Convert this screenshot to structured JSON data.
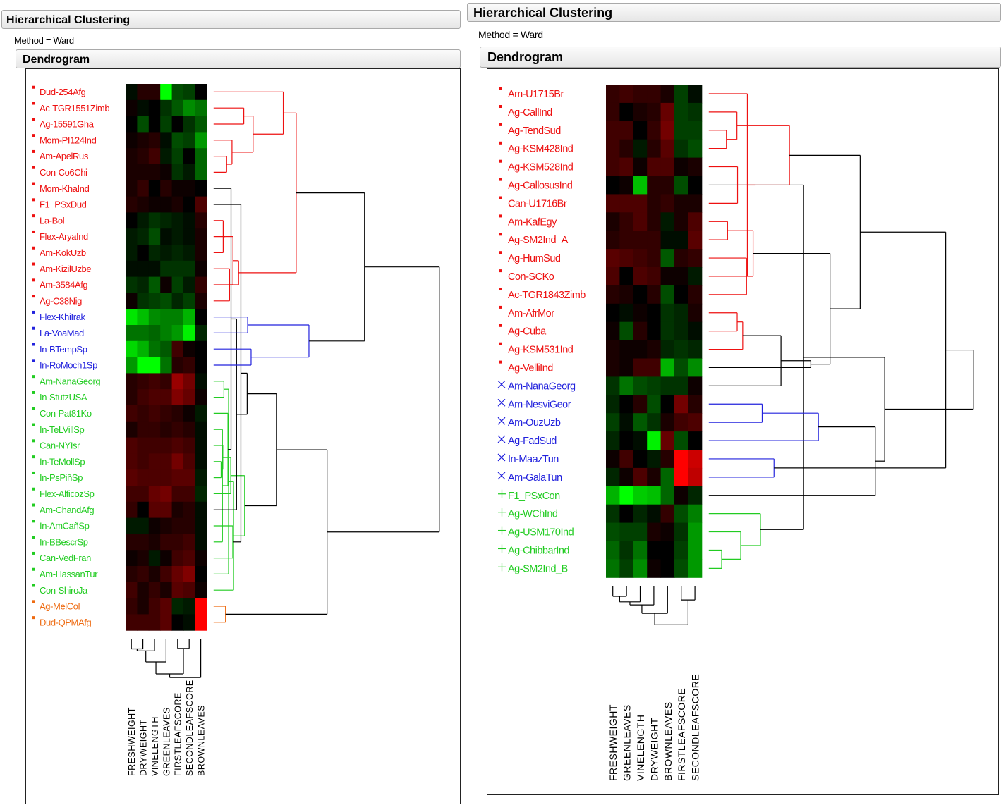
{
  "panels": [
    {
      "title": "Hierarchical Clustering",
      "method_label": "Method = Ward",
      "subtitle": "Dendrogram"
    },
    {
      "title": "Hierarchical Clustering",
      "method_label": "Method = Ward",
      "subtitle": "Dendrogram"
    }
  ],
  "chart_data": [
    {
      "type": "heatmap",
      "title": "Dendrogram",
      "method": "Ward",
      "colors": {
        "high": "#ff0000",
        "low": "#00ff00",
        "mid": "#000000"
      },
      "columns": [
        "FRESHWEIGHT",
        "DRYWEIGHT",
        "VINELENGTH",
        "GREENLEAVES",
        "FIRSTLEAFSCORE",
        "SECONDLEAFSCORE",
        "BROWNLEAVES"
      ],
      "clusters": [
        {
          "color": "#ee1111",
          "marker": "square"
        },
        {
          "color": "#2222dd",
          "marker": "square"
        },
        {
          "color": "#22cc22",
          "marker": "square"
        },
        {
          "color": "#ee6a10",
          "marker": "square"
        }
      ],
      "rows": [
        {
          "label": "Dud-254Afg",
          "cluster": 0,
          "values": [
            -0.1,
            0.3,
            0.3,
            -2.0,
            -0.6,
            -0.5,
            0.0
          ]
        },
        {
          "label": "Ac-TGR1551Zimb",
          "cluster": 0,
          "values": [
            0.1,
            -0.1,
            0.0,
            -0.4,
            -0.7,
            -1.1,
            -0.9
          ]
        },
        {
          "label": "Ag-15591Gha",
          "cluster": 0,
          "values": [
            0.0,
            -0.6,
            0.0,
            -0.5,
            0.0,
            -0.4,
            -0.7
          ]
        },
        {
          "label": "Mom-PI124Ind",
          "cluster": 0,
          "values": [
            0.1,
            0.2,
            0.3,
            -0.1,
            -0.6,
            -0.5,
            -1.2
          ]
        },
        {
          "label": "Am-ApelRus",
          "cluster": 0,
          "values": [
            0.2,
            0.3,
            0.5,
            -0.2,
            -0.5,
            0.0,
            -0.8
          ]
        },
        {
          "label": "Con-Co6Chi",
          "cluster": 0,
          "values": [
            0.2,
            0.2,
            0.2,
            0.1,
            -0.4,
            -0.2,
            -0.8
          ]
        },
        {
          "label": "Mom-KhaInd",
          "cluster": 0,
          "values": [
            0.2,
            0.4,
            0.0,
            0.3,
            0.1,
            0.1,
            0.0
          ]
        },
        {
          "label": "F1_PSxDud",
          "cluster": 0,
          "values": [
            0.3,
            0.2,
            0.1,
            0.1,
            0.2,
            0.0,
            0.6
          ]
        },
        {
          "label": "La-Bol",
          "cluster": 0,
          "values": [
            0.0,
            -0.2,
            -0.4,
            -0.3,
            -0.2,
            -0.1,
            0.3
          ]
        },
        {
          "label": "Flex-AryaInd",
          "cluster": 0,
          "values": [
            -0.2,
            -0.3,
            -0.6,
            -0.1,
            -0.2,
            -0.1,
            0.2
          ]
        },
        {
          "label": "Am-KokUzb",
          "cluster": 0,
          "values": [
            -0.2,
            0.0,
            -0.3,
            -0.2,
            -0.3,
            -0.2,
            0.2
          ]
        },
        {
          "label": "Am-KizilUzbe",
          "cluster": 0,
          "values": [
            -0.1,
            -0.1,
            -0.1,
            -0.4,
            -0.4,
            -0.4,
            0.1
          ]
        },
        {
          "label": "Am-3584Afg",
          "cluster": 0,
          "values": [
            -0.4,
            -0.3,
            -0.7,
            0.1,
            -0.5,
            -0.2,
            0.4
          ]
        },
        {
          "label": "Ag-C38Nig",
          "cluster": 0,
          "values": [
            0.1,
            -0.4,
            -0.5,
            -0.6,
            -0.3,
            -0.5,
            0.2
          ]
        },
        {
          "label": "Flex-KhiIrak",
          "cluster": 1,
          "values": [
            -1.8,
            -1.5,
            -1.1,
            -1.0,
            -1.0,
            -1.4,
            0.0
          ]
        },
        {
          "label": "La-VoaMad",
          "cluster": 1,
          "values": [
            -0.9,
            -0.9,
            -0.8,
            -1.0,
            -1.2,
            -1.9,
            -0.3
          ]
        },
        {
          "label": "In-BTempSp",
          "cluster": 1,
          "values": [
            -1.7,
            -1.4,
            -0.9,
            -0.7,
            0.5,
            0.1,
            0.0
          ]
        },
        {
          "label": "In-RoMoch1Sp",
          "cluster": 1,
          "values": [
            -1.2,
            -2.0,
            -2.0,
            -0.9,
            0.3,
            0.4,
            0.0
          ]
        },
        {
          "label": "Am-NanaGeorg",
          "cluster": 2,
          "values": [
            0.3,
            0.4,
            0.5,
            0.4,
            1.2,
            0.9,
            -0.1
          ]
        },
        {
          "label": "In-StutzUSA",
          "cluster": 2,
          "values": [
            0.3,
            0.5,
            0.6,
            0.6,
            1.0,
            0.8,
            0.1
          ]
        },
        {
          "label": "Con-Pat81Ko",
          "cluster": 2,
          "values": [
            0.5,
            0.4,
            0.5,
            0.4,
            0.3,
            0.1,
            -0.2
          ]
        },
        {
          "label": "In-TeLVillSp",
          "cluster": 2,
          "values": [
            0.2,
            0.4,
            0.4,
            0.3,
            0.4,
            0.3,
            -0.1
          ]
        },
        {
          "label": "Can-NYIsr",
          "cluster": 2,
          "values": [
            0.6,
            0.5,
            0.5,
            0.5,
            0.6,
            0.5,
            -0.1
          ]
        },
        {
          "label": "In-TeMollSp",
          "cluster": 2,
          "values": [
            0.6,
            0.5,
            0.6,
            0.6,
            0.9,
            0.6,
            -0.1
          ]
        },
        {
          "label": "In-PsPiñSp",
          "cluster": 2,
          "values": [
            0.7,
            0.6,
            0.6,
            0.6,
            0.7,
            0.7,
            -0.2
          ]
        },
        {
          "label": "Flex-AlficozSp",
          "cluster": 2,
          "values": [
            0.5,
            0.5,
            0.8,
            0.9,
            0.5,
            0.5,
            -0.3
          ]
        },
        {
          "label": "Am-ChandAfg",
          "cluster": 2,
          "values": [
            0.4,
            0.0,
            0.7,
            0.7,
            0.2,
            0.3,
            -0.1
          ]
        },
        {
          "label": "In-AmCañSp",
          "cluster": 2,
          "values": [
            -0.2,
            -0.2,
            0.1,
            0.2,
            0.3,
            0.3,
            -0.1
          ]
        },
        {
          "label": "In-BBescrSp",
          "cluster": 2,
          "values": [
            0.3,
            0.3,
            0.2,
            0.4,
            0.4,
            0.5,
            -0.1
          ]
        },
        {
          "label": "Can-VedFran",
          "cluster": 2,
          "values": [
            0.1,
            0.2,
            -0.2,
            0.1,
            0.5,
            0.6,
            0.1
          ]
        },
        {
          "label": "Am-HassanTur",
          "cluster": 2,
          "values": [
            0.3,
            0.4,
            0.2,
            0.5,
            0.8,
            1.0,
            0.0
          ]
        },
        {
          "label": "Con-ShiroJa",
          "cluster": 2,
          "values": [
            0.5,
            0.2,
            0.4,
            0.2,
            0.7,
            0.6,
            0.1
          ]
        },
        {
          "label": "Ag-MelCol",
          "cluster": 3,
          "values": [
            0.4,
            0.2,
            0.5,
            0.7,
            -0.3,
            -0.2,
            2.0
          ]
        },
        {
          "label": "Dud-QPMAfg",
          "cluster": 3,
          "values": [
            0.5,
            0.5,
            0.5,
            0.7,
            0.0,
            -0.1,
            2.0
          ]
        }
      ]
    },
    {
      "type": "heatmap",
      "title": "Dendrogram",
      "method": "Ward",
      "colors": {
        "high": "#ff0000",
        "low": "#00ff00",
        "mid": "#000000"
      },
      "columns": [
        "FRESHWEIGHT",
        "GREENLEAVES",
        "VINELENGTH",
        "DRYWEIGHT",
        "BROWNLEAVES",
        "FIRSTLEAFSCORE",
        "SECONDLEAFSCORE"
      ],
      "clusters": [
        {
          "color": "#ee1111",
          "marker": "square"
        },
        {
          "color": "#2222dd",
          "marker": "cross"
        },
        {
          "color": "#22cc22",
          "marker": "plus"
        }
      ],
      "rows": [
        {
          "label": "Am-U1715Br",
          "cluster": 0,
          "values": [
            0.4,
            0.5,
            0.4,
            0.4,
            0.2,
            -0.5,
            -0.1
          ]
        },
        {
          "label": "Ag-CallInd",
          "cluster": 0,
          "values": [
            0.4,
            0.0,
            0.2,
            0.3,
            0.8,
            -0.5,
            -0.4
          ]
        },
        {
          "label": "Ag-TendSud",
          "cluster": 0,
          "values": [
            0.5,
            0.5,
            0.0,
            0.4,
            0.9,
            -0.5,
            -0.5
          ]
        },
        {
          "label": "Ag-KSM428Ind",
          "cluster": 0,
          "values": [
            0.5,
            0.3,
            -0.2,
            0.3,
            0.7,
            -0.4,
            -0.6
          ]
        },
        {
          "label": "Ag-KSM528Ind",
          "cluster": 0,
          "values": [
            0.5,
            0.6,
            0.1,
            0.6,
            0.6,
            0.1,
            0.2
          ]
        },
        {
          "label": "Ag-CallosusInd",
          "cluster": 0,
          "values": [
            0.0,
            0.1,
            -1.5,
            0.3,
            0.3,
            -0.6,
            0.0
          ]
        },
        {
          "label": "Can-U1716Br",
          "cluster": 0,
          "values": [
            0.6,
            0.6,
            0.6,
            0.3,
            0.4,
            0.2,
            0.2
          ]
        },
        {
          "label": "Am-KafEgy",
          "cluster": 0,
          "values": [
            0.2,
            0.4,
            0.6,
            0.3,
            -0.2,
            0.2,
            0.6
          ]
        },
        {
          "label": "Ag-SM2Ind_A",
          "cluster": 0,
          "values": [
            0.3,
            0.4,
            0.4,
            0.4,
            -0.1,
            -0.1,
            0.7
          ]
        },
        {
          "label": "Ag-HumSud",
          "cluster": 0,
          "values": [
            0.7,
            0.6,
            0.5,
            0.4,
            -0.7,
            0.3,
            0.4
          ]
        },
        {
          "label": "Con-SCKo",
          "cluster": 0,
          "values": [
            0.6,
            0.0,
            0.6,
            0.5,
            0.1,
            0.1,
            -0.2
          ]
        },
        {
          "label": "Ac-TGR1843Zimb",
          "cluster": 0,
          "values": [
            0.3,
            0.2,
            0.0,
            0.3,
            -0.6,
            0.0,
            0.3
          ]
        },
        {
          "label": "Am-AfrMor",
          "cluster": 0,
          "values": [
            0.0,
            -0.1,
            0.1,
            0.0,
            -0.4,
            -0.3,
            0.2
          ]
        },
        {
          "label": "Ag-Cuba",
          "cluster": 0,
          "values": [
            0.1,
            -0.6,
            0.3,
            0.0,
            -0.4,
            -0.3,
            -0.1
          ]
        },
        {
          "label": "Ag-KSM531Ind",
          "cluster": 0,
          "values": [
            0.2,
            0.1,
            0.1,
            0.2,
            -0.3,
            -0.4,
            -0.3
          ]
        },
        {
          "label": "Ag-VelliInd",
          "cluster": 0,
          "values": [
            0.2,
            0.1,
            0.5,
            0.5,
            -1.4,
            -0.6,
            -1.1
          ]
        },
        {
          "label": "Am-NanaGeorg",
          "cluster": 1,
          "values": [
            -0.4,
            -0.9,
            -0.6,
            -0.5,
            -0.4,
            -0.4,
            0.1
          ]
        },
        {
          "label": "Am-NesviGeor",
          "cluster": 1,
          "values": [
            -0.3,
            0.0,
            0.3,
            -0.6,
            0.0,
            0.9,
            0.3
          ]
        },
        {
          "label": "Am-OuzUzb",
          "cluster": 1,
          "values": [
            -0.5,
            -0.1,
            -0.7,
            -0.4,
            0.2,
            0.5,
            0.6
          ]
        },
        {
          "label": "Ag-FadSud",
          "cluster": 1,
          "values": [
            -0.3,
            0.0,
            -0.1,
            -1.9,
            0.8,
            -0.6,
            0.0
          ]
        },
        {
          "label": "In-MaazTun",
          "cluster": 1,
          "values": [
            0.1,
            0.5,
            0.0,
            -0.2,
            0.3,
            2.0,
            1.6
          ]
        },
        {
          "label": "Am-GalaTun",
          "cluster": 1,
          "values": [
            -0.3,
            0.1,
            0.6,
            0.2,
            -0.8,
            2.0,
            1.5
          ]
        },
        {
          "label": "F1_PSxCon",
          "cluster": 2,
          "values": [
            -1.4,
            -2.0,
            -1.6,
            -1.5,
            -0.8,
            0.1,
            -0.3
          ]
        },
        {
          "label": "Ag-WChInd",
          "cluster": 2,
          "values": [
            -0.4,
            0.0,
            -0.3,
            -0.1,
            0.4,
            -0.6,
            -1.0
          ]
        },
        {
          "label": "Ag-USM170Ind",
          "cluster": 2,
          "values": [
            -0.6,
            -0.5,
            -0.5,
            0.2,
            0.1,
            -0.4,
            -1.2
          ]
        },
        {
          "label": "Ag-ChibbarInd",
          "cluster": 2,
          "values": [
            -0.8,
            -0.4,
            -0.9,
            0.0,
            0.0,
            -0.5,
            -1.2
          ]
        },
        {
          "label": "Ag-SM2Ind_B",
          "cluster": 2,
          "values": [
            -0.9,
            -0.5,
            -1.1,
            0.1,
            0.0,
            -0.6,
            -1.2
          ]
        }
      ]
    }
  ]
}
